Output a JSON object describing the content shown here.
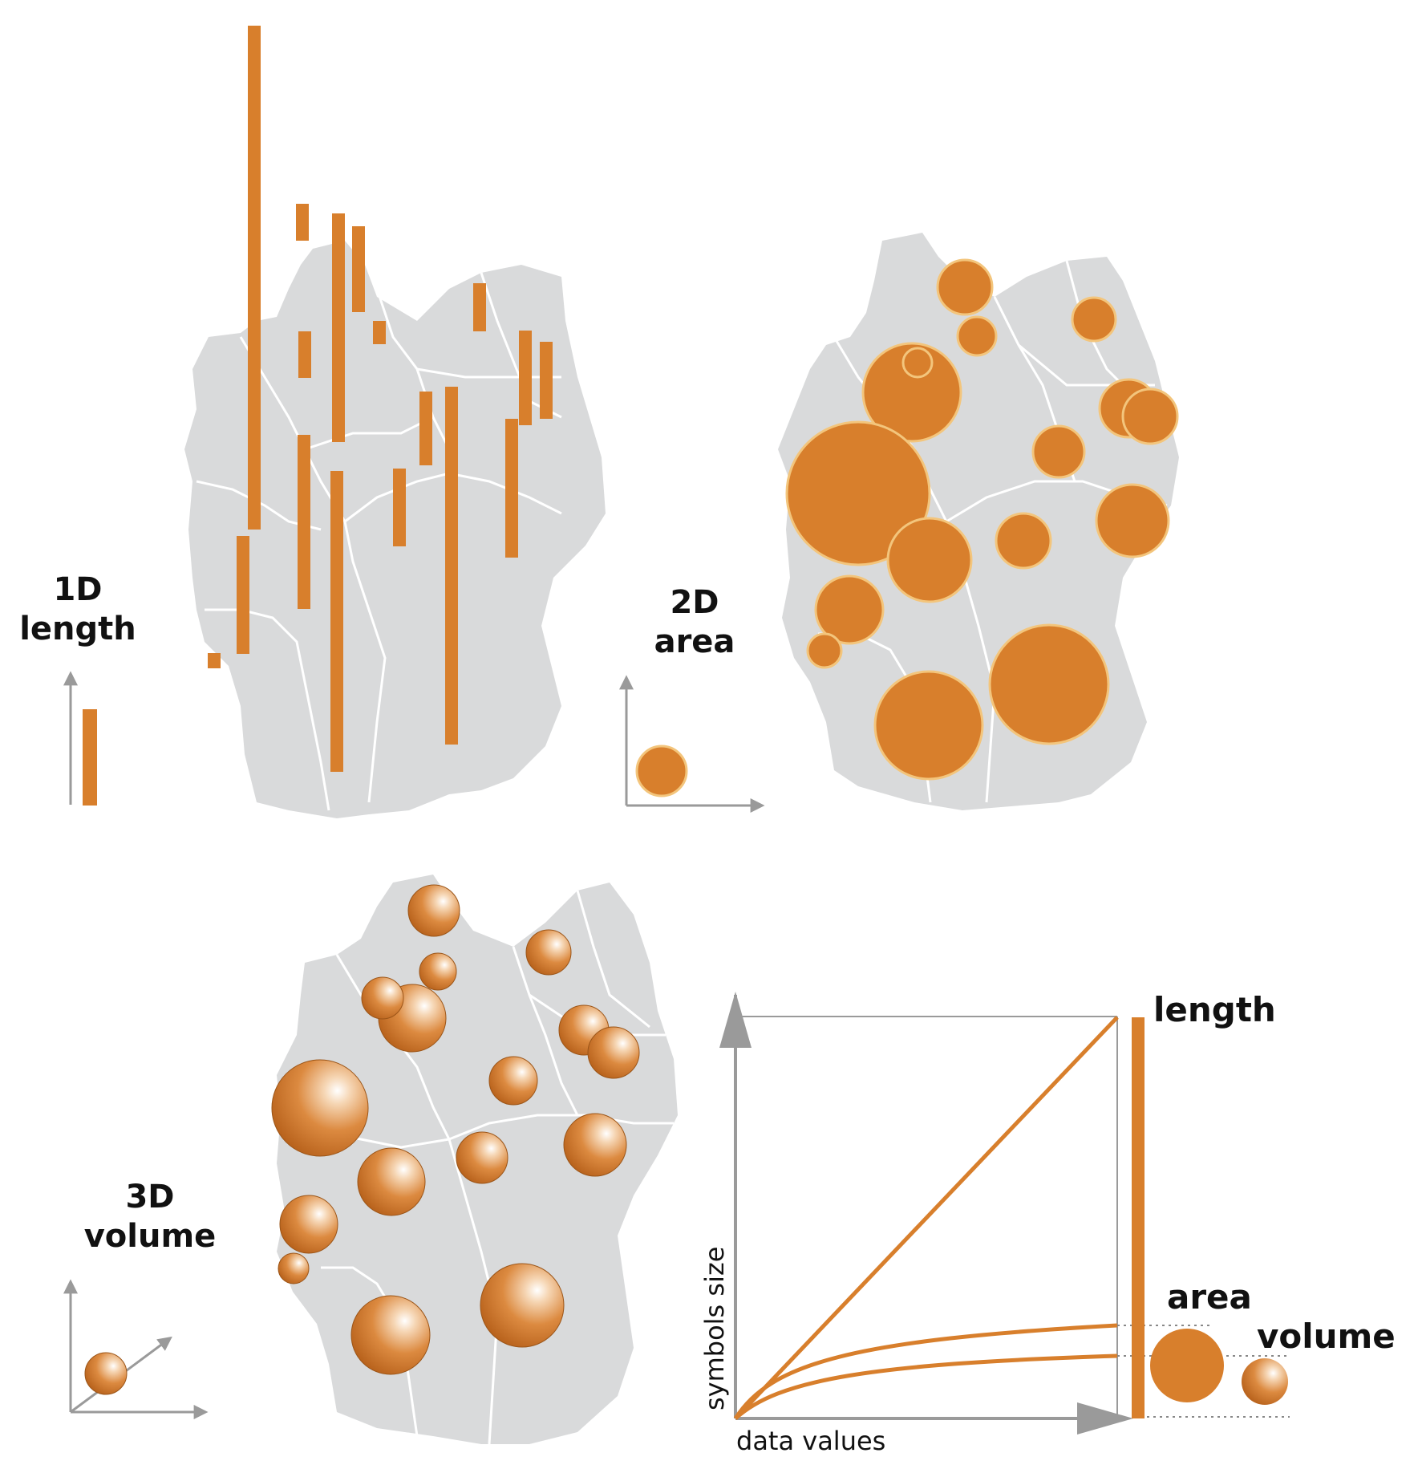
{
  "colors": {
    "symbol": "#d87f2c",
    "map": "#d9dadb",
    "border": "#ffffff",
    "axis": "#9a9a9a",
    "circle_outline": "#f3c57c"
  },
  "panels": {
    "length": {
      "line1": "1D",
      "line2": "length"
    },
    "area": {
      "line1": "2D",
      "line2": "area"
    },
    "volume": {
      "line1": "3D",
      "line2": "volume"
    }
  },
  "graph": {
    "xlabel": "data values",
    "ylabel": "symbols size",
    "curves": [
      "length",
      "area",
      "volume"
    ],
    "labels": {
      "length": "length",
      "area": "area",
      "volume": "volume"
    }
  }
}
